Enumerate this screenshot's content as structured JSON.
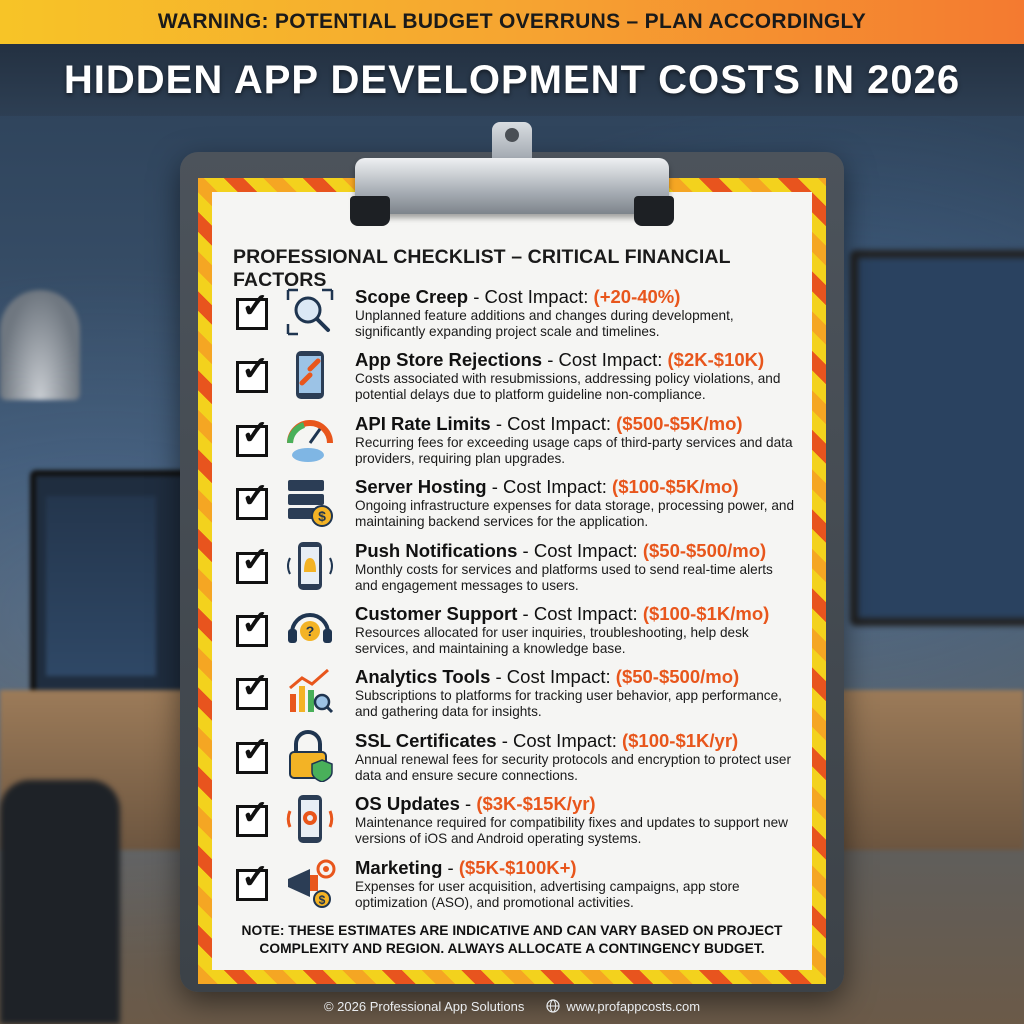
{
  "warning": "WARNING: POTENTIAL BUDGET OVERRUNS – PLAN ACCORDINGLY",
  "title": "HIDDEN APP DEVELOPMENT COSTS IN 2026",
  "checklist_heading": "PROFESSIONAL CHECKLIST – CRITICAL FINANCIAL FACTORS",
  "colors": {
    "accent": "#e8561c",
    "warning_start": "#f7c427",
    "warning_end": "#f47a30"
  },
  "items": [
    {
      "name": "Scope Creep",
      "sep": " - Cost Impact: ",
      "cost": "(+20-40%)",
      "icon": "magnifier-expand-icon",
      "description": "Unplanned feature additions and changes during development, significantly expanding project scale and timelines."
    },
    {
      "name": "App Store Rejections",
      "sep": " - Cost Impact: ",
      "cost": "($2K-$10K)",
      "icon": "broken-link-phone-icon",
      "description": "Costs associated with resubmissions, addressing policy violations, and potential delays due to platform guideline non-compliance."
    },
    {
      "name": "API Rate Limits",
      "sep": " - Cost Impact: ",
      "cost": "($500-$5K/mo)",
      "icon": "gauge-cloud-icon",
      "description": "Recurring fees for exceeding usage caps of third-party services and data providers, requiring plan upgrades."
    },
    {
      "name": "Server Hosting",
      "sep": " - Cost Impact: ",
      "cost": "($100-$5K/mo)",
      "icon": "server-dollar-icon",
      "description": "Ongoing infrastructure expenses for data storage, processing power, and maintaining backend services for the application."
    },
    {
      "name": "Push Notifications",
      "sep": " - Cost Impact: ",
      "cost": "($50-$500/mo)",
      "icon": "phone-bell-icon",
      "description": "Monthly costs for services and platforms used to send real-time alerts and engagement messages to users."
    },
    {
      "name": "Customer Support",
      "sep": " - Cost Impact: ",
      "cost": "($100-$1K/mo)",
      "icon": "headset-question-icon",
      "description": "Resources allocated for user inquiries, troubleshooting, help desk services, and maintaining a knowledge base."
    },
    {
      "name": "Analytics Tools",
      "sep": " - Cost Impact: ",
      "cost": "($50-$500/mo)",
      "icon": "chart-magnifier-icon",
      "description": "Subscriptions to platforms for tracking user behavior, app performance, and gathering data for insights."
    },
    {
      "name": "SSL Certificates",
      "sep": " - Cost Impact: ",
      "cost": "($100-$1K/yr)",
      "icon": "padlock-shield-icon",
      "description": "Annual renewal fees for security protocols and encryption to protect user data and ensure secure connections."
    },
    {
      "name": "OS Updates",
      "sep": " - ",
      "cost": "($3K-$15K/yr)",
      "icon": "phone-gear-icon",
      "description": "Maintenance required for compatibility fixes and updates to support new versions of iOS and Android operating systems."
    },
    {
      "name": "Marketing",
      "sep": " - ",
      "cost": "($5K-$100K+)",
      "icon": "megaphone-target-icon",
      "description": "Expenses for user acquisition, advertising campaigns, app store optimization (ASO), and promotional activities."
    }
  ],
  "note": "NOTE: THESE ESTIMATES ARE INDICATIVE AND CAN VARY BASED ON PROJECT COMPLEXITY AND REGION. ALWAYS ALLOCATE A CONTINGENCY BUDGET.",
  "footer": {
    "copyright": "© 2026 Professional App Solutions",
    "website": "www.profappcosts.com"
  }
}
